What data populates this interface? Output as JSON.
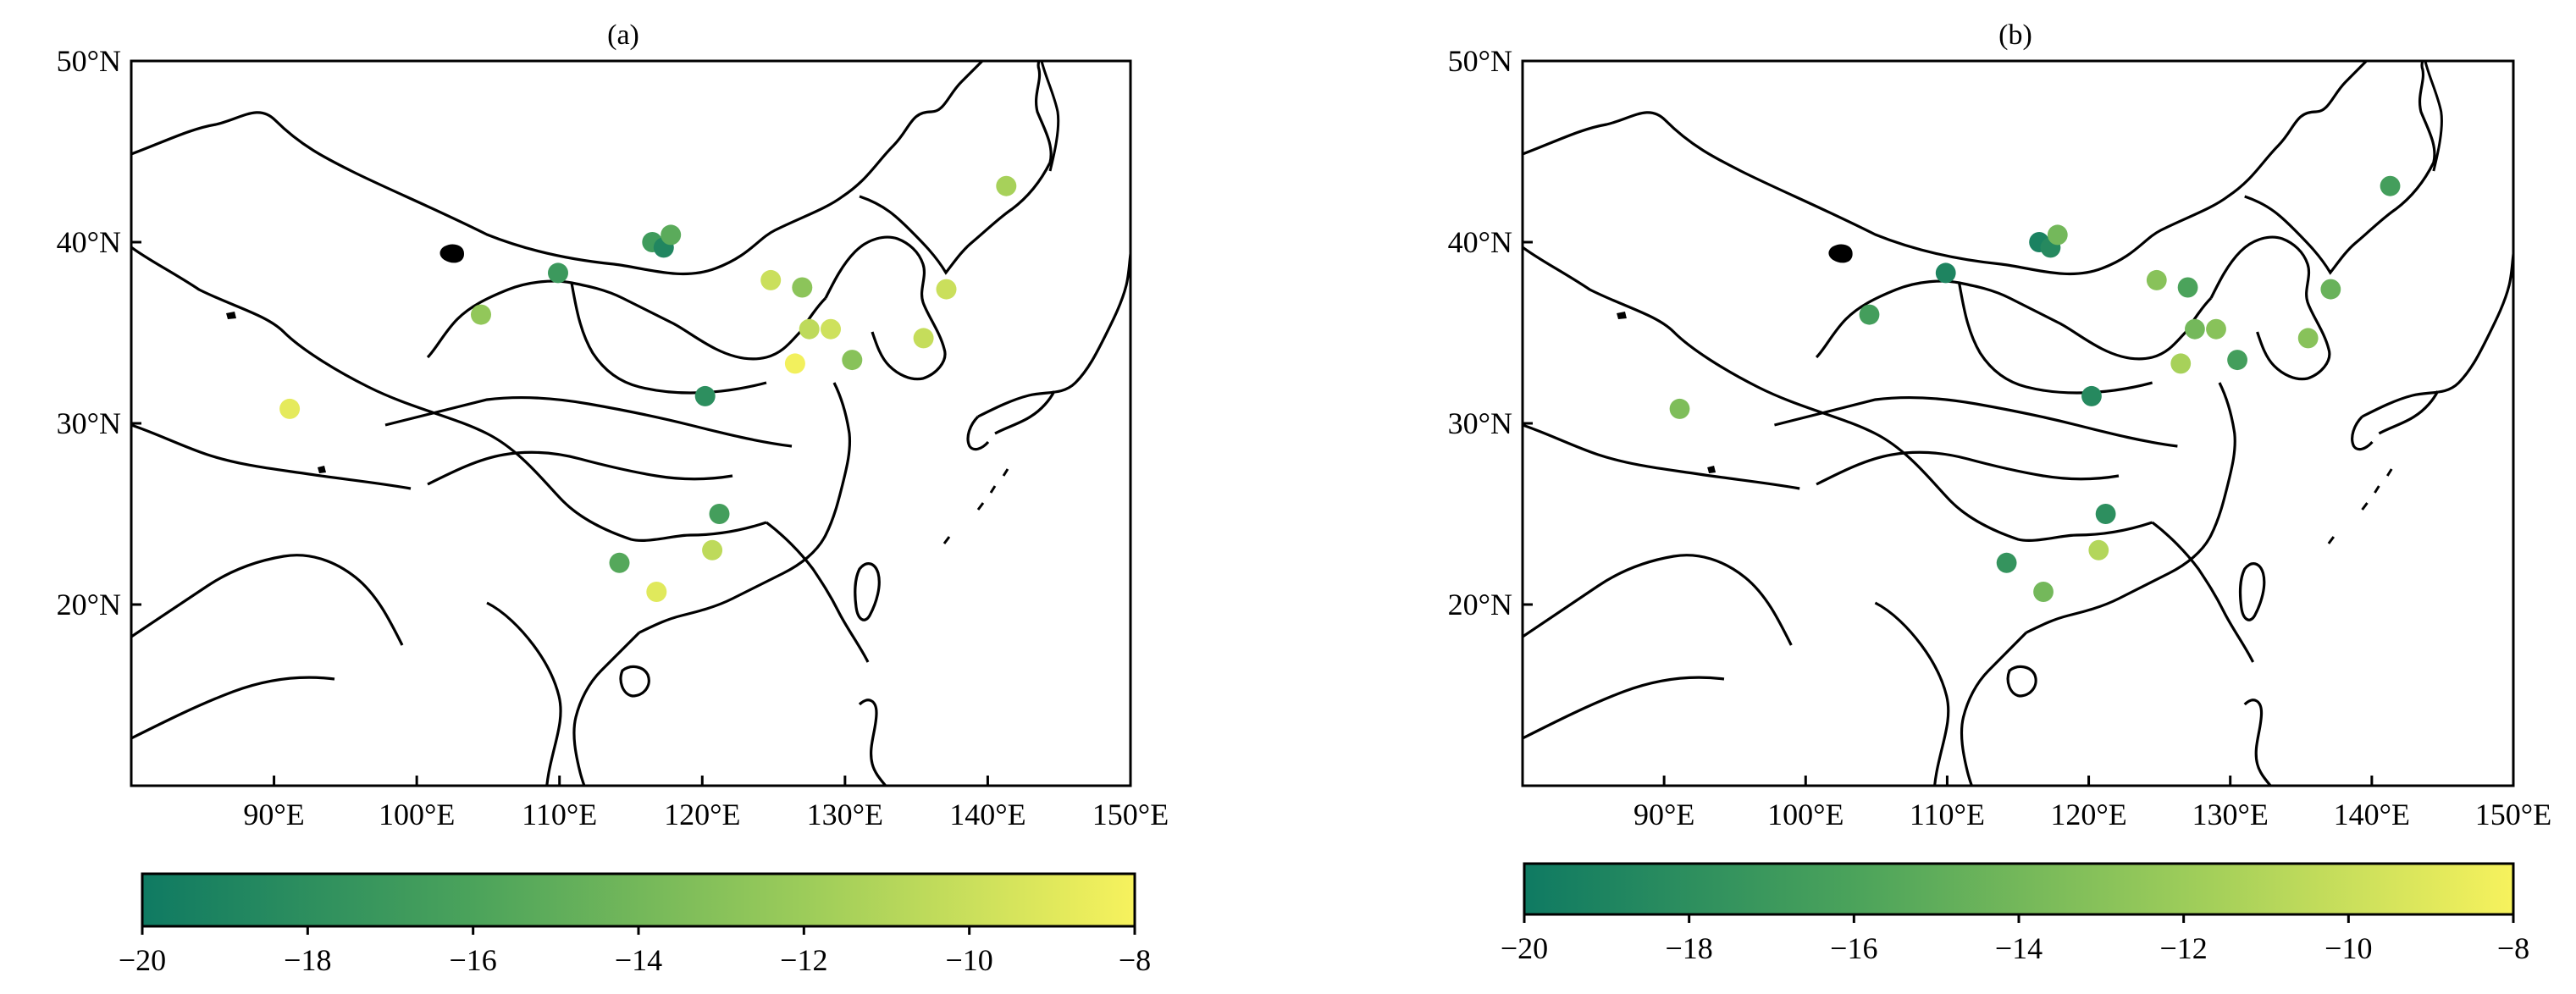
{
  "panels": [
    {
      "id": "a",
      "label": "(a)",
      "lat_ticks": [
        "50°N",
        "40°N",
        "30°N",
        "20°N"
      ],
      "lon_ticks": [
        "90°E",
        "100°E",
        "110°E",
        "120°E",
        "130°E",
        "140°E",
        "150°E"
      ],
      "colorbar_ticks": [
        "−20",
        "−18",
        "−16",
        "−14",
        "−12",
        "−10",
        "−8"
      ]
    },
    {
      "id": "b",
      "label": "(b)",
      "lat_ticks": [
        "50°N",
        "40°N",
        "30°N",
        "20°N"
      ],
      "lon_ticks": [
        "90°E",
        "100°E",
        "110°E",
        "120°E",
        "130°E",
        "140°E",
        "150°E"
      ],
      "colorbar_ticks": [
        "−20",
        "−18",
        "−16",
        "−14",
        "−12",
        "−10",
        "−8"
      ]
    }
  ],
  "chart_data": [
    {
      "type": "scatter",
      "title": "(a)",
      "xlim": [
        80,
        150
      ],
      "ylim": [
        10,
        50
      ],
      "xticks": [
        90,
        100,
        110,
        120,
        130,
        140,
        150
      ],
      "yticks": [
        50,
        40,
        30,
        20
      ],
      "color_range": [
        -20,
        -8
      ],
      "colormap": [
        "#0f7a62",
        "#4ba35b",
        "#9ccc5a",
        "#f7f25d"
      ],
      "points": [
        {
          "lon": 91.1,
          "lat": 30.8,
          "value": -8.8
        },
        {
          "lon": 104.5,
          "lat": 36.0,
          "value": -12.5
        },
        {
          "lon": 109.9,
          "lat": 38.3,
          "value": -17.0
        },
        {
          "lon": 116.5,
          "lat": 40.0,
          "value": -16.8
        },
        {
          "lon": 117.3,
          "lat": 39.7,
          "value": -18.8
        },
        {
          "lon": 117.8,
          "lat": 40.4,
          "value": -15.2
        },
        {
          "lon": 120.2,
          "lat": 31.5,
          "value": -18.0
        },
        {
          "lon": 124.8,
          "lat": 37.9,
          "value": -10.0
        },
        {
          "lon": 126.5,
          "lat": 33.3,
          "value": -8.2
        },
        {
          "lon": 127.0,
          "lat": 37.5,
          "value": -12.8
        },
        {
          "lon": 127.5,
          "lat": 35.2,
          "value": -10.5
        },
        {
          "lon": 129.0,
          "lat": 35.2,
          "value": -9.8
        },
        {
          "lon": 130.5,
          "lat": 33.5,
          "value": -13.0
        },
        {
          "lon": 135.5,
          "lat": 34.7,
          "value": -10.2
        },
        {
          "lon": 137.1,
          "lat": 37.4,
          "value": -10.0
        },
        {
          "lon": 141.3,
          "lat": 43.1,
          "value": -11.5
        },
        {
          "lon": 114.2,
          "lat": 22.3,
          "value": -15.5
        },
        {
          "lon": 121.2,
          "lat": 25.0,
          "value": -16.5
        },
        {
          "lon": 120.7,
          "lat": 23.0,
          "value": -10.5
        },
        {
          "lon": 116.8,
          "lat": 20.7,
          "value": -9.0
        }
      ]
    },
    {
      "type": "scatter",
      "title": "(b)",
      "xlim": [
        80,
        150
      ],
      "ylim": [
        10,
        50
      ],
      "xticks": [
        90,
        100,
        110,
        120,
        130,
        140,
        150
      ],
      "yticks": [
        50,
        40,
        30,
        20
      ],
      "color_range": [
        -20,
        -8
      ],
      "colormap": [
        "#0f7a62",
        "#4ba35b",
        "#9ccc5a",
        "#f7f25d"
      ],
      "points": [
        {
          "lon": 91.1,
          "lat": 30.8,
          "value": -13.5
        },
        {
          "lon": 104.5,
          "lat": 36.0,
          "value": -16.5
        },
        {
          "lon": 109.9,
          "lat": 38.3,
          "value": -19.0
        },
        {
          "lon": 116.5,
          "lat": 40.0,
          "value": -19.2
        },
        {
          "lon": 117.3,
          "lat": 39.7,
          "value": -18.5
        },
        {
          "lon": 117.8,
          "lat": 40.4,
          "value": -14.0
        },
        {
          "lon": 120.2,
          "lat": 31.5,
          "value": -18.5
        },
        {
          "lon": 124.8,
          "lat": 37.9,
          "value": -13.0
        },
        {
          "lon": 126.5,
          "lat": 33.3,
          "value": -11.5
        },
        {
          "lon": 127.0,
          "lat": 37.5,
          "value": -16.0
        },
        {
          "lon": 127.5,
          "lat": 35.2,
          "value": -14.0
        },
        {
          "lon": 129.0,
          "lat": 35.2,
          "value": -13.0
        },
        {
          "lon": 130.5,
          "lat": 33.5,
          "value": -16.5
        },
        {
          "lon": 135.5,
          "lat": 34.7,
          "value": -13.0
        },
        {
          "lon": 137.1,
          "lat": 37.4,
          "value": -14.5
        },
        {
          "lon": 141.3,
          "lat": 43.1,
          "value": -16.5
        },
        {
          "lon": 114.2,
          "lat": 22.3,
          "value": -17.5
        },
        {
          "lon": 121.2,
          "lat": 25.0,
          "value": -18.0
        },
        {
          "lon": 120.7,
          "lat": 23.0,
          "value": -11.0
        },
        {
          "lon": 116.8,
          "lat": 20.7,
          "value": -14.0
        }
      ]
    }
  ]
}
